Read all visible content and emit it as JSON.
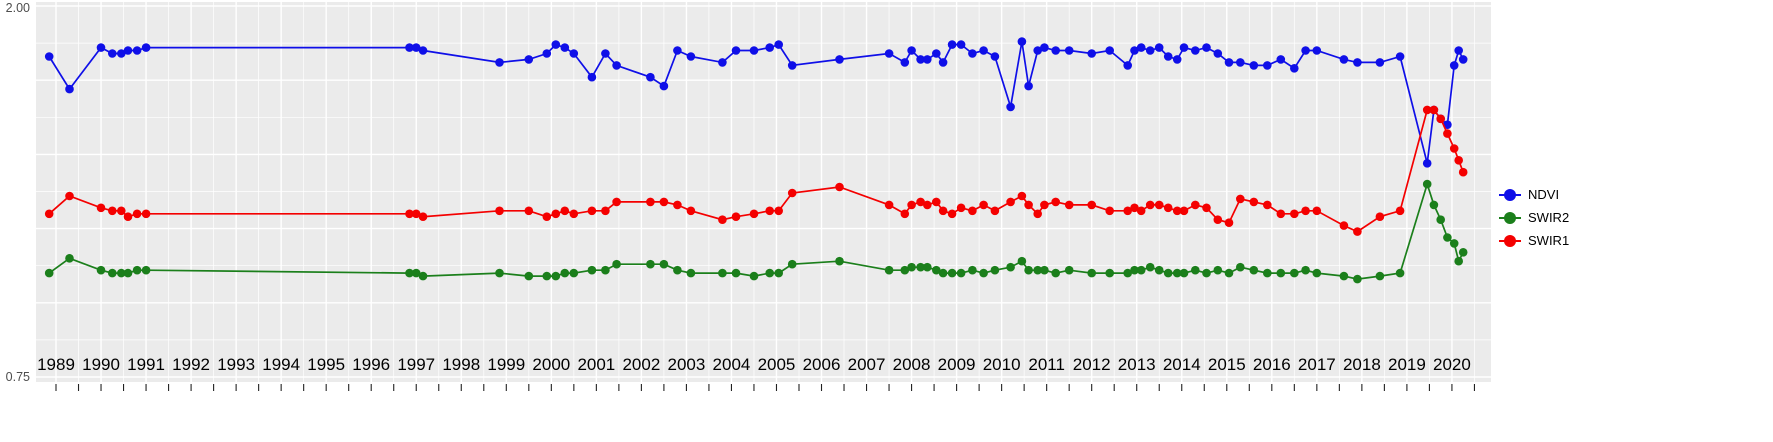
{
  "chart_data": {
    "type": "line",
    "title": "",
    "xlabel": "",
    "ylabel": "",
    "panel_background": "#ebebeb",
    "grid_color": "#ffffff",
    "tick_color": "#222222",
    "x_axis": {
      "tick_labels": [
        "1989",
        "1990",
        "1991",
        "1992",
        "1993",
        "1994",
        "1995",
        "1996",
        "1997",
        "1998",
        "1999",
        "2000",
        "2001",
        "2002",
        "2003",
        "2004",
        "2005",
        "2006",
        "2007",
        "2008",
        "2009",
        "2010",
        "2011",
        "2012",
        "2013",
        "2014",
        "2015",
        "2016",
        "2017",
        "2018",
        "2019",
        "2020"
      ],
      "label_color": "#000000",
      "range": [
        1988.55,
        2020.9
      ]
    },
    "y_axis": {
      "range": [
        0.75,
        2.0
      ],
      "visible_tick_labels": [
        "2.00",
        "0.75"
      ],
      "grid_major": [
        0.75,
        1.0,
        1.25,
        1.5,
        1.75,
        2.0
      ],
      "grid_minor": [
        0.875,
        1.125,
        1.375,
        1.625,
        1.875
      ],
      "label_color": "#4d4d4d"
    },
    "legend": {
      "position": "right",
      "entries": [
        {
          "label": "NDVI",
          "color": "#0f0fe8"
        },
        {
          "label": "SWIR2",
          "color": "#1b7f1b"
        },
        {
          "label": "SWIR1",
          "color": "#f40000"
        }
      ]
    },
    "x": [
      1988.85,
      1989.3,
      1990.0,
      1990.25,
      1990.45,
      1990.6,
      1990.8,
      1991.0,
      1996.85,
      1997.0,
      1997.15,
      1998.85,
      1999.5,
      1999.9,
      2000.1,
      2000.3,
      2000.5,
      2000.9,
      2001.2,
      2001.45,
      2002.2,
      2002.5,
      2002.8,
      2003.1,
      2003.8,
      2004.1,
      2004.5,
      2004.85,
      2005.05,
      2005.35,
      2006.4,
      2007.5,
      2007.85,
      2008.0,
      2008.2,
      2008.35,
      2008.55,
      2008.7,
      2008.9,
      2009.1,
      2009.35,
      2009.6,
      2009.85,
      2010.2,
      2010.45,
      2010.6,
      2010.8,
      2010.95,
      2011.2,
      2011.5,
      2012.0,
      2012.4,
      2012.8,
      2012.95,
      2013.1,
      2013.3,
      2013.5,
      2013.7,
      2013.9,
      2014.05,
      2014.3,
      2014.55,
      2014.8,
      2015.05,
      2015.3,
      2015.6,
      2015.9,
      2016.2,
      2016.5,
      2016.75,
      2017.0,
      2017.6,
      2017.9,
      2018.4,
      2018.85,
      2019.45,
      2019.6,
      2019.75,
      2019.9,
      2020.05,
      2020.15,
      2020.25
    ],
    "series": [
      {
        "name": "NDVI",
        "color": "#0f0fe8",
        "values": [
          1.83,
          1.72,
          1.86,
          1.84,
          1.84,
          1.85,
          1.85,
          1.86,
          1.86,
          1.86,
          1.85,
          1.81,
          1.82,
          1.84,
          1.87,
          1.86,
          1.84,
          1.76,
          1.84,
          1.8,
          1.76,
          1.73,
          1.85,
          1.83,
          1.81,
          1.85,
          1.85,
          1.86,
          1.87,
          1.8,
          1.82,
          1.84,
          1.81,
          1.85,
          1.82,
          1.82,
          1.84,
          1.81,
          1.87,
          1.87,
          1.84,
          1.85,
          1.83,
          1.66,
          1.88,
          1.73,
          1.85,
          1.86,
          1.85,
          1.85,
          1.84,
          1.85,
          1.8,
          1.85,
          1.86,
          1.85,
          1.86,
          1.83,
          1.82,
          1.86,
          1.85,
          1.86,
          1.84,
          1.81,
          1.81,
          1.8,
          1.8,
          1.82,
          1.79,
          1.85,
          1.85,
          1.82,
          1.81,
          1.81,
          1.83,
          1.47,
          1.65,
          1.62,
          1.6,
          1.8,
          1.85,
          1.82
        ]
      },
      {
        "name": "SWIR2",
        "color": "#1b7f1b",
        "values": [
          1.1,
          1.15,
          1.11,
          1.1,
          1.1,
          1.1,
          1.11,
          1.11,
          1.1,
          1.1,
          1.09,
          1.1,
          1.09,
          1.09,
          1.09,
          1.1,
          1.1,
          1.11,
          1.11,
          1.13,
          1.13,
          1.13,
          1.11,
          1.1,
          1.1,
          1.1,
          1.09,
          1.1,
          1.1,
          1.13,
          1.14,
          1.11,
          1.11,
          1.12,
          1.12,
          1.12,
          1.11,
          1.1,
          1.1,
          1.1,
          1.11,
          1.1,
          1.11,
          1.12,
          1.14,
          1.11,
          1.11,
          1.11,
          1.1,
          1.11,
          1.1,
          1.1,
          1.1,
          1.11,
          1.11,
          1.12,
          1.11,
          1.1,
          1.1,
          1.1,
          1.11,
          1.1,
          1.11,
          1.1,
          1.12,
          1.11,
          1.1,
          1.1,
          1.1,
          1.11,
          1.1,
          1.09,
          1.08,
          1.09,
          1.1,
          1.4,
          1.33,
          1.28,
          1.22,
          1.2,
          1.14,
          1.17
        ]
      },
      {
        "name": "SWIR1",
        "color": "#f40000",
        "values": [
          1.3,
          1.36,
          1.32,
          1.31,
          1.31,
          1.29,
          1.3,
          1.3,
          1.3,
          1.3,
          1.29,
          1.31,
          1.31,
          1.29,
          1.3,
          1.31,
          1.3,
          1.31,
          1.31,
          1.34,
          1.34,
          1.34,
          1.33,
          1.31,
          1.28,
          1.29,
          1.3,
          1.31,
          1.31,
          1.37,
          1.39,
          1.33,
          1.3,
          1.33,
          1.34,
          1.33,
          1.34,
          1.31,
          1.3,
          1.32,
          1.31,
          1.33,
          1.31,
          1.34,
          1.36,
          1.33,
          1.3,
          1.33,
          1.34,
          1.33,
          1.33,
          1.31,
          1.31,
          1.32,
          1.31,
          1.33,
          1.33,
          1.32,
          1.31,
          1.31,
          1.33,
          1.32,
          1.28,
          1.27,
          1.35,
          1.34,
          1.33,
          1.3,
          1.3,
          1.31,
          1.31,
          1.26,
          1.24,
          1.29,
          1.31,
          1.65,
          1.65,
          1.62,
          1.57,
          1.52,
          1.48,
          1.44
        ]
      }
    ]
  }
}
